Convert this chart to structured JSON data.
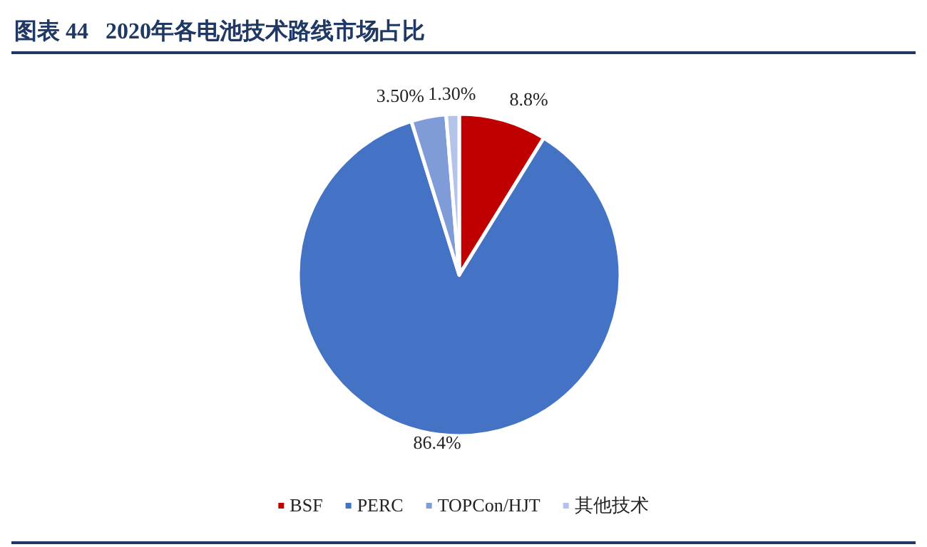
{
  "chart_data": {
    "type": "pie",
    "title": "图表 44   2020年各电池技术路线市场占比",
    "categories": [
      "BSF",
      "PERC",
      "TOPCon/HJT",
      "其他技术"
    ],
    "values": [
      8.8,
      86.4,
      3.5,
      1.3
    ],
    "colors": [
      "#c00000",
      "#4472c4",
      "#7f9bd8",
      "#b4c4e8"
    ],
    "value_labels": [
      "8.8%",
      "86.4%",
      "3.50%",
      "1.30%"
    ],
    "legend": "bottom"
  }
}
